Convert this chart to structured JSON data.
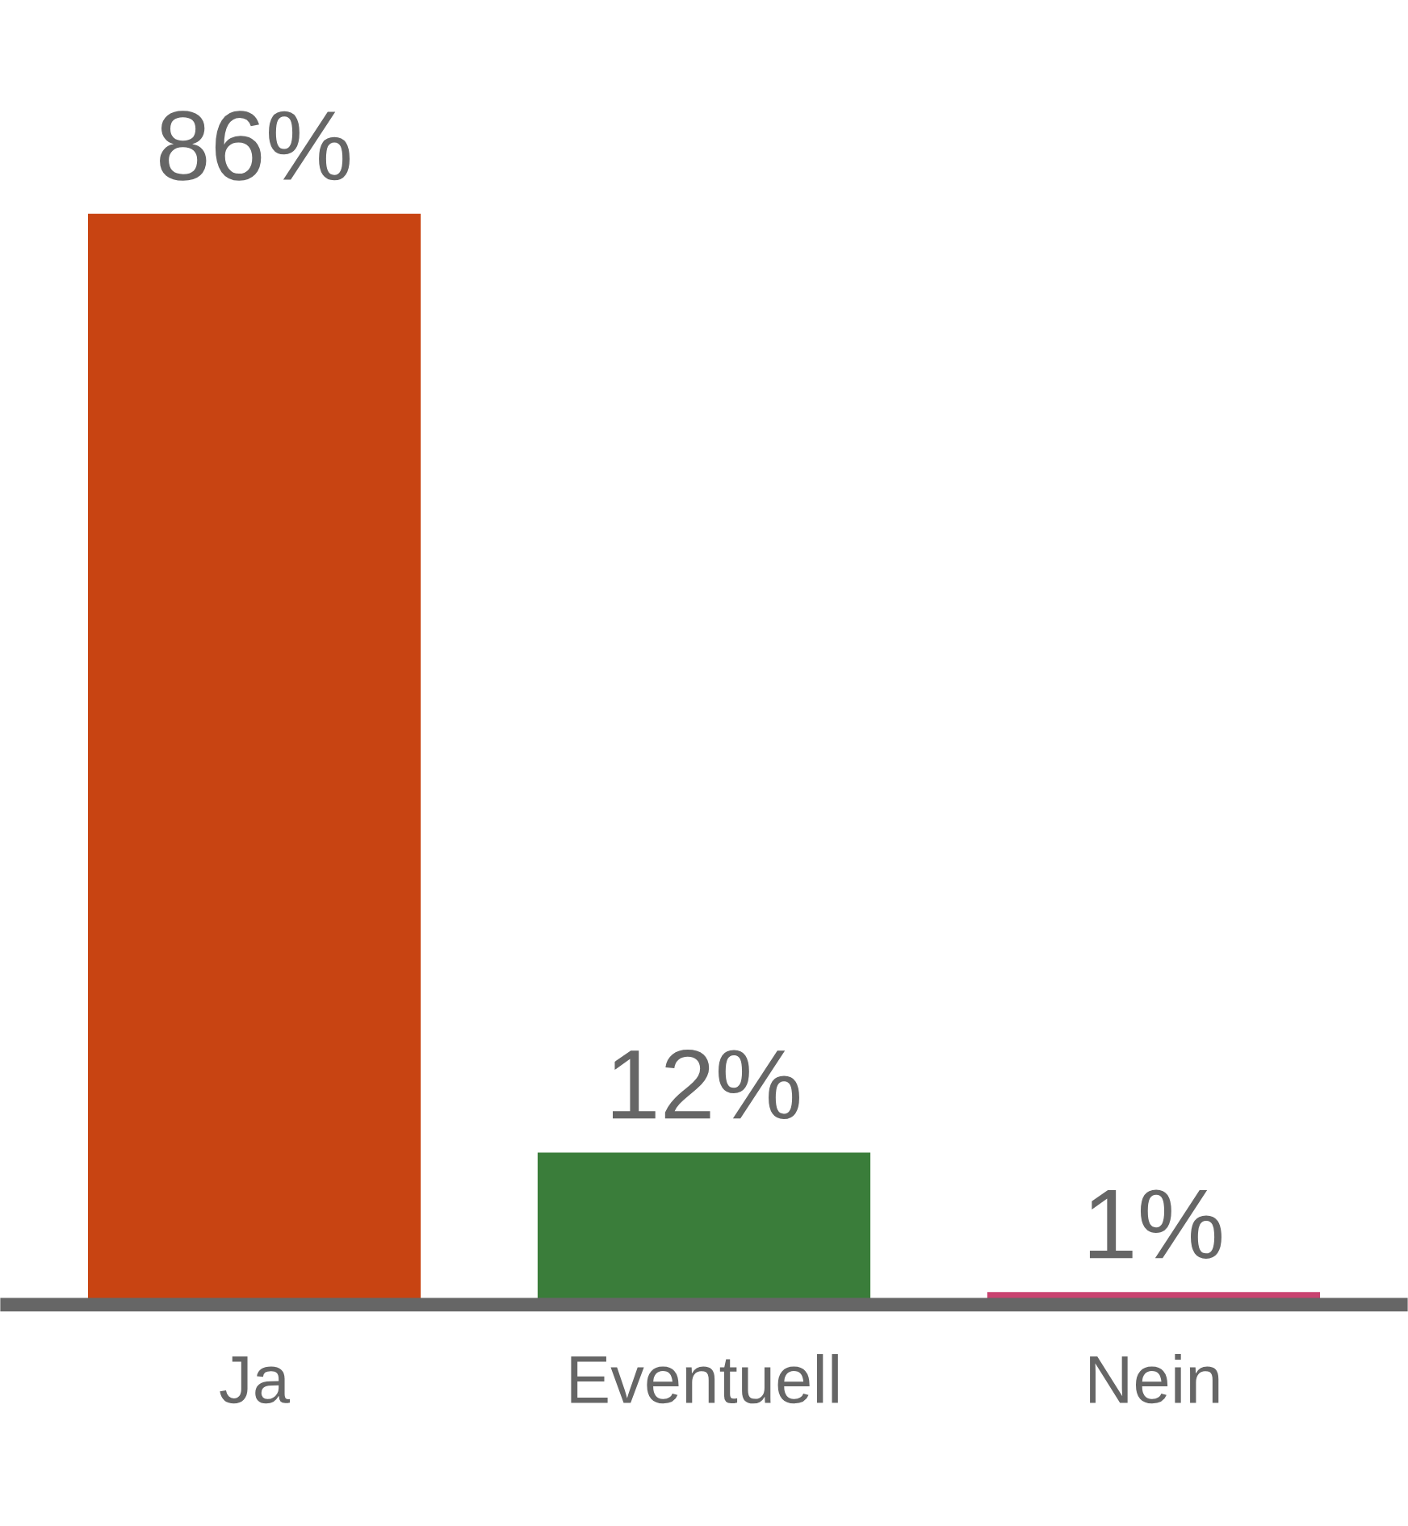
{
  "chart_data": {
    "type": "bar",
    "categories": [
      "Ja",
      "Eventuell",
      "Nein"
    ],
    "values": [
      86,
      12,
      1
    ],
    "colors": [
      "#c84412",
      "#3a7d3a",
      "#c94370"
    ],
    "value_labels": [
      "86%",
      "12%",
      "1%"
    ],
    "tick_labels": "x"
  }
}
